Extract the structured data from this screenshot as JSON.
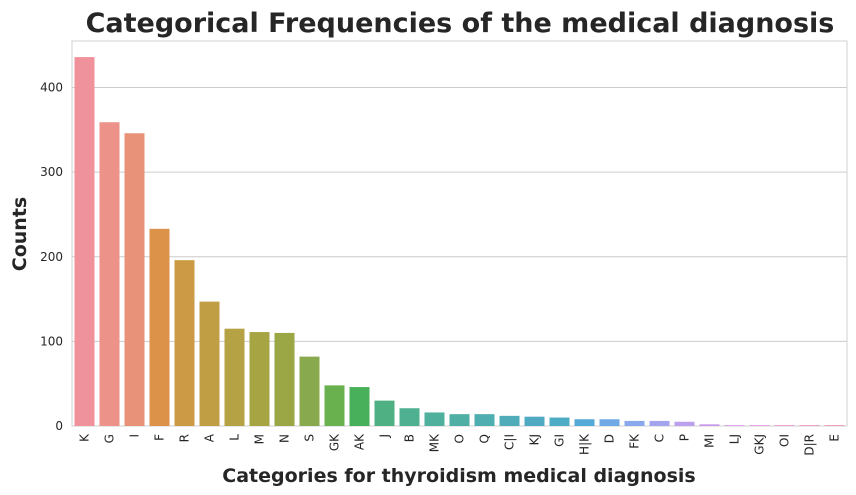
{
  "chart_data": {
    "type": "bar",
    "title": "Categorical Frequencies of the medical diagnosis",
    "xlabel": "Categories for thyroidism medical diagnosis",
    "ylabel": "Counts",
    "ylim": [
      0,
      455
    ],
    "yticks": [
      0,
      100,
      200,
      300,
      400
    ],
    "grid": true,
    "categories": [
      "K",
      "G",
      "I",
      "F",
      "R",
      "A",
      "L",
      "M",
      "N",
      "S",
      "GK",
      "AK",
      "J",
      "B",
      "MK",
      "O",
      "Q",
      "C|I",
      "KJ",
      "GI",
      "H|K",
      "D",
      "FK",
      "C",
      "P",
      "MI",
      "LJ",
      "GKJ",
      "OI",
      "D|R",
      "E"
    ],
    "values": [
      436,
      359,
      346,
      233,
      196,
      147,
      115,
      111,
      110,
      82,
      48,
      46,
      30,
      21,
      16,
      14,
      14,
      12,
      11,
      10,
      8,
      8,
      6,
      6,
      5,
      2,
      1,
      1,
      1,
      1,
      1
    ],
    "colors": [
      "#f0929b",
      "#ec9289",
      "#e8927a",
      "#dc9248",
      "#cc9a44",
      "#c09f44",
      "#b4a244",
      "#a7a444",
      "#9aa744",
      "#89a94e",
      "#68b14e",
      "#48b05a",
      "#4fb183",
      "#4eb091",
      "#4fb09d",
      "#4fafa5",
      "#4faeb0",
      "#4facb8",
      "#50abc2",
      "#4facc5",
      "#55a9d6",
      "#6faae6",
      "#8aa8ee",
      "#a4a4ee",
      "#bba0ee",
      "#c99aea",
      "#db96ea",
      "#e793e0",
      "#ee90d0",
      "#ef90c0",
      "#f090ad"
    ]
  }
}
